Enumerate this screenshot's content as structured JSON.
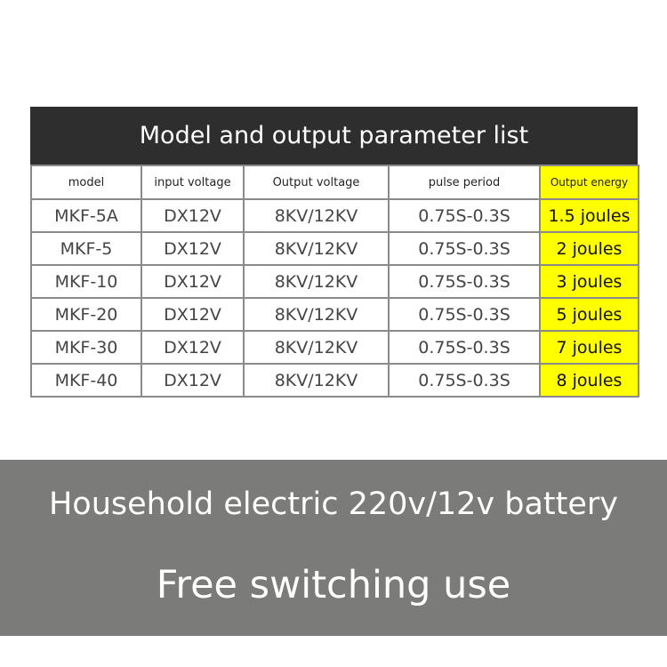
{
  "title": "Model and output parameter list",
  "headers": [
    "model",
    "input voltage",
    "Output voltage",
    "pulse period",
    "Output energy"
  ],
  "rows": [
    [
      "MKF-5A",
      "DX12V",
      "8KV/12KV",
      "0.75S-0.3S",
      "1.5 joules"
    ],
    [
      "MKF-5",
      "DX12V",
      "8KV/12KV",
      "0.75S-0.3S",
      "2 joules"
    ],
    [
      "MKF-10",
      "DX12V",
      "8KV/12KV",
      "0.75S-0.3S",
      "3 joules"
    ],
    [
      "MKF-20",
      "DX12V",
      "8KV/12KV",
      "0.75S-0.3S",
      "5 joules"
    ],
    [
      "MKF-30",
      "DX12V",
      "8KV/12KV",
      "0.75S-0.3S",
      "7 joules"
    ],
    [
      "MKF-40",
      "DX12V",
      "8KV/12KV",
      "0.75S-0.3S",
      "8 joules"
    ]
  ],
  "banner": {
    "line1": "Household electric 220v/12v battery",
    "line2": "Free switching use"
  },
  "colors": {
    "highlight": "#ffff00",
    "header_bg": "#2e2e2e",
    "banner_bg": "#7b7b79"
  }
}
